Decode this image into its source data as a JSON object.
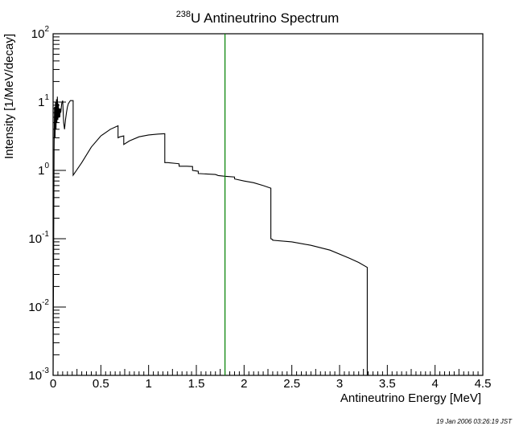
{
  "chart_data": {
    "type": "line",
    "title": "U Antineutrino Spectrum",
    "title_superscript": "238",
    "xlabel": "Antineutrino Energy [MeV]",
    "ylabel": "Intensity [1/MeV/decay]",
    "xlim": [
      0,
      4.5
    ],
    "ylim": [
      0.001,
      100
    ],
    "yscale": "log",
    "grid": false,
    "x_ticks": [
      "0",
      "0.5",
      "1",
      "1.5",
      "2",
      "2.5",
      "3",
      "3.5",
      "4",
      "4.5"
    ],
    "y_ticks": [
      {
        "base": "10",
        "exp": "-3",
        "value": 0.001
      },
      {
        "base": "10",
        "exp": "-2",
        "value": 0.01
      },
      {
        "base": "10",
        "exp": "-1",
        "value": 0.1
      },
      {
        "base": "1",
        "exp": "0",
        "value": 1
      },
      {
        "base": "1",
        "exp": "1",
        "value": 10
      },
      {
        "base": "10",
        "exp": "2",
        "value": 100
      }
    ],
    "series": [
      {
        "color": "#000000",
        "x": [
          0,
          0.01,
          0.015,
          0.02,
          0.025,
          0.03,
          0.035,
          0.04,
          0.045,
          0.05,
          0.055,
          0.06,
          0.065,
          0.07,
          0.075,
          0.08,
          0.09,
          0.1,
          0.11,
          0.12,
          0.13,
          0.14,
          0.15,
          0.16,
          0.17,
          0.18,
          0.21,
          0.21,
          0.3,
          0.4,
          0.5,
          0.6,
          0.68,
          0.68,
          0.7,
          0.74,
          0.74,
          0.8,
          0.9,
          1.0,
          1.1,
          1.17,
          1.17,
          1.2,
          1.3,
          1.32,
          1.32,
          1.4,
          1.46,
          1.46,
          1.5,
          1.52,
          1.52,
          1.7,
          1.73,
          1.8,
          1.9,
          1.9,
          2.0,
          2.1,
          2.2,
          2.28,
          2.28,
          2.3,
          2.3,
          2.5,
          2.7,
          2.9,
          3.1,
          3.2,
          3.29,
          3.29
        ],
        "y": [
          0.001,
          2.0,
          8.5,
          3.0,
          10.0,
          4.0,
          11.0,
          5.0,
          12.0,
          5.5,
          9.5,
          6.0,
          8.0,
          6.0,
          8.0,
          7.0,
          9.5,
          10.5,
          5.0,
          4.0,
          5.5,
          7.0,
          8.5,
          9.5,
          10.0,
          10.5,
          10.5,
          0.85,
          1.3,
          2.2,
          3.2,
          4.0,
          4.5,
          3.0,
          3.1,
          3.2,
          2.4,
          2.7,
          3.1,
          3.3,
          3.4,
          3.45,
          1.3,
          1.3,
          1.26,
          1.25,
          1.15,
          1.15,
          1.14,
          1.0,
          0.98,
          0.97,
          0.9,
          0.87,
          0.84,
          0.82,
          0.8,
          0.75,
          0.7,
          0.66,
          0.6,
          0.55,
          0.1,
          0.097,
          0.095,
          0.09,
          0.08,
          0.068,
          0.052,
          0.045,
          0.038,
          0.001
        ]
      }
    ],
    "markers": [
      {
        "x": 1.8,
        "color": "#008000"
      }
    ]
  },
  "timestamp": "19 Jan 2006 03:26:19 JST"
}
